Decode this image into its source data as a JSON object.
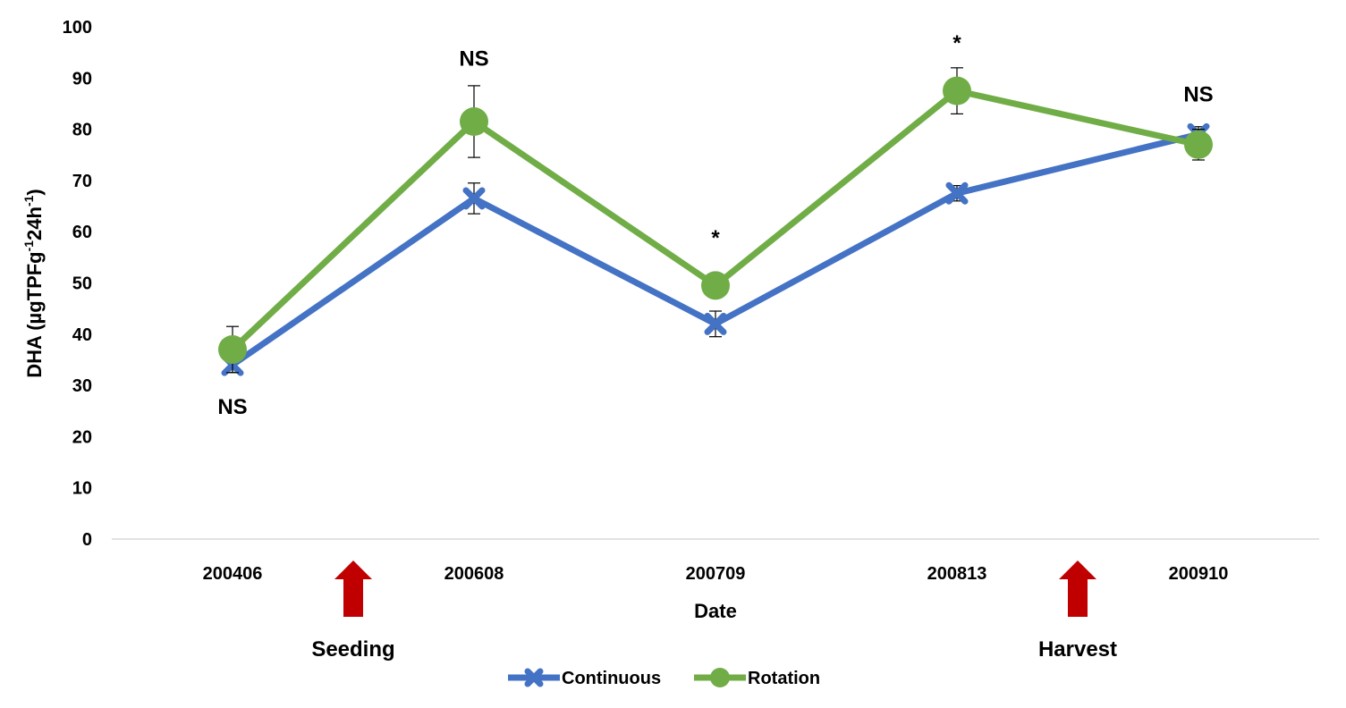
{
  "chart_data": {
    "type": "line",
    "categories": [
      "200406",
      "200608",
      "200709",
      "200813",
      "200910"
    ],
    "xlabel": "Date",
    "ylabel_main": "DHA (µgTPFg",
    "ylabel_sup1": "-1",
    "ylabel_mid": "24h",
    "ylabel_sup2": "-1",
    "ylabel_end": ")",
    "ylim": [
      0,
      100
    ],
    "yticks": [
      0,
      10,
      20,
      30,
      40,
      50,
      60,
      70,
      80,
      90,
      100
    ],
    "grid": false,
    "legend_position": "bottom",
    "series": [
      {
        "name": "Continuous",
        "color": "#4472c4",
        "marker": "x",
        "values": [
          34,
          66.5,
          42,
          67.5,
          79
        ],
        "error": [
          1.5,
          3,
          2.5,
          1.5,
          1.5
        ]
      },
      {
        "name": "Rotation",
        "color": "#70ad47",
        "marker": "circle",
        "values": [
          37,
          81.5,
          49.5,
          87.5,
          77
        ],
        "error": [
          4.5,
          7,
          2,
          4.5,
          3
        ]
      }
    ],
    "significance": [
      {
        "category": "200406",
        "label": "NS",
        "position": "below",
        "value": 26
      },
      {
        "category": "200608",
        "label": "NS",
        "position": "above",
        "value": 94
      },
      {
        "category": "200709",
        "label": "*",
        "position": "above",
        "value": 59
      },
      {
        "category": "200813",
        "label": "*",
        "position": "above",
        "value": 97
      },
      {
        "category": "200910",
        "label": "NS",
        "position": "above",
        "value": 87
      }
    ],
    "events": [
      {
        "label": "Seeding",
        "between": [
          "200406",
          "200608"
        ],
        "color": "#c00000",
        "icon": "red-up-arrow"
      },
      {
        "label": "Harvest",
        "between": [
          "200813",
          "200910"
        ],
        "color": "#c00000",
        "icon": "red-up-arrow"
      }
    ],
    "axis_color": "#d9d9d9"
  }
}
